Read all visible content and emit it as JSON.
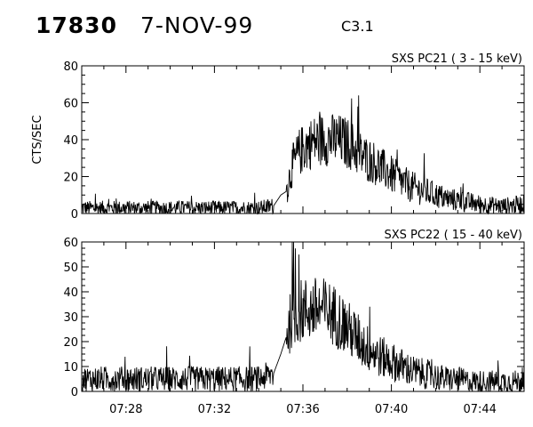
{
  "header": {
    "event_id": "17830",
    "date": "7-NOV-99",
    "flare_class": "C3.1"
  },
  "chart_data": [
    {
      "type": "line",
      "title": "SXS PC21  (  3 - 15 keV)",
      "ylabel": "CTS/SEC",
      "xlabel": "",
      "xlim": [
        "07:26:00",
        "07:46:00"
      ],
      "ylim": [
        0,
        80
      ],
      "y_ticks": [
        "0",
        "20",
        "40",
        "60",
        "80"
      ],
      "x_tick_labels": [
        "07:28",
        "07:32",
        "07:36",
        "07:40",
        "07:44"
      ],
      "grid": false,
      "series": [
        {
          "color": "#000000",
          "x": [
            "07:26",
            "07:28",
            "07:30",
            "07:32",
            "07:34",
            "07:34:40",
            "07:35:00",
            "07:35:15",
            "07:35:30",
            "07:35:50",
            "07:36:10",
            "07:36:30",
            "07:36:50",
            "07:37:10",
            "07:37:30",
            "07:37:50",
            "07:38:10",
            "07:38:30",
            "07:38:50",
            "07:39:10",
            "07:39:30",
            "07:40",
            "07:40:30",
            "07:41",
            "07:41:30",
            "07:42",
            "07:42:30",
            "07:43",
            "07:43:30",
            "07:44",
            "07:45",
            "07:46"
          ],
          "values": [
            3,
            3,
            3,
            3,
            3,
            4,
            10,
            12,
            25,
            33,
            37,
            39,
            40,
            40,
            40,
            39,
            37,
            33,
            30,
            28,
            25,
            21,
            17,
            14,
            12,
            10,
            8,
            7,
            6,
            5,
            4,
            5
          ]
        }
      ]
    },
    {
      "type": "line",
      "title": "SXS PC22  ( 15 - 40 keV)",
      "ylabel": "",
      "xlabel": "",
      "xlim": [
        "07:26:00",
        "07:46:00"
      ],
      "ylim": [
        0,
        60
      ],
      "y_ticks": [
        "0",
        "10",
        "20",
        "30",
        "40",
        "50",
        "60"
      ],
      "x_tick_labels": [
        "07:28",
        "07:32",
        "07:36",
        "07:40",
        "07:44"
      ],
      "grid": false,
      "series": [
        {
          "color": "#000000",
          "x": [
            "07:26",
            "07:28",
            "07:30",
            "07:32",
            "07:34",
            "07:34:40",
            "07:35:00",
            "07:35:15",
            "07:35:30",
            "07:35:50",
            "07:36:10",
            "07:36:30",
            "07:36:50",
            "07:37:10",
            "07:37:30",
            "07:37:50",
            "07:38:10",
            "07:38:30",
            "07:38:50",
            "07:39:10",
            "07:39:30",
            "07:40",
            "07:40:30",
            "07:41",
            "07:41:30",
            "07:42",
            "07:42:30",
            "07:43",
            "07:43:30",
            "07:44",
            "07:45",
            "07:46"
          ],
          "values": [
            5,
            5,
            5,
            5,
            5,
            7,
            15,
            22,
            30,
            32,
            33,
            33,
            33,
            32,
            30,
            27,
            24,
            21,
            18,
            16,
            14,
            12,
            10,
            8,
            7,
            6,
            5,
            5,
            4,
            4,
            4,
            4
          ]
        }
      ]
    }
  ]
}
